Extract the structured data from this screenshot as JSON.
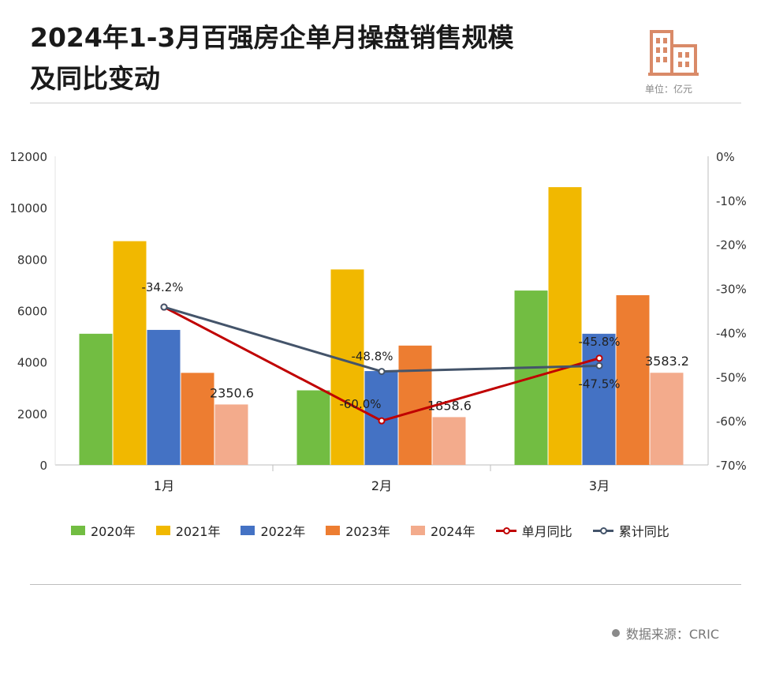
{
  "header": {
    "title_line1": "2024年1-3月百强房企单月操盘销售规模",
    "title_line2": "及同比变动",
    "unit": "单位：亿元",
    "icon": "building-icon"
  },
  "footer": {
    "source": "数据来源：CRIC"
  },
  "colors": {
    "2020年": "#72bd42",
    "2021年": "#f1b800",
    "2022年": "#4472c4",
    "2023年": "#ed7d31",
    "2024年": "#f3ab8c",
    "单月同比": "#c00000",
    "累计同比": "#44546a"
  },
  "chart_data": {
    "type": "bar",
    "categories": [
      "1月",
      "2月",
      "3月"
    ],
    "ylim": [
      0,
      12000
    ],
    "yticks": [
      0,
      2000,
      4000,
      6000,
      8000,
      10000,
      12000
    ],
    "y2lim": [
      -70,
      0
    ],
    "y2ticks": [
      0,
      -10,
      -20,
      -30,
      -40,
      -50,
      -60,
      -70
    ],
    "y2tick_labels": [
      "0%",
      "-10%",
      "-20%",
      "-30%",
      "-40%",
      "-50%",
      "-60%",
      "-70%"
    ],
    "series": [
      {
        "name": "2020年",
        "values": [
          5100,
          2900,
          6780
        ]
      },
      {
        "name": "2021年",
        "values": [
          8700,
          7600,
          10800
        ]
      },
      {
        "name": "2022年",
        "values": [
          5250,
          3650,
          5100
        ]
      },
      {
        "name": "2023年",
        "values": [
          3580,
          4640,
          6600
        ]
      },
      {
        "name": "2024年",
        "values": [
          2350.6,
          1858.6,
          3583.2
        ],
        "labels": [
          "2350.6",
          "1858.6",
          "3583.2"
        ]
      }
    ],
    "lines": [
      {
        "name": "单月同比",
        "axis": "right",
        "values": [
          -34.2,
          -60.0,
          -45.8
        ],
        "labels": [
          "",
          "-60.0%",
          "-45.8%"
        ]
      },
      {
        "name": "累计同比",
        "axis": "right",
        "values": [
          -34.2,
          -48.8,
          -47.5
        ],
        "labels": [
          "-34.2%",
          "-48.8%",
          "-47.5%"
        ]
      }
    ],
    "legend_position": "bottom"
  }
}
